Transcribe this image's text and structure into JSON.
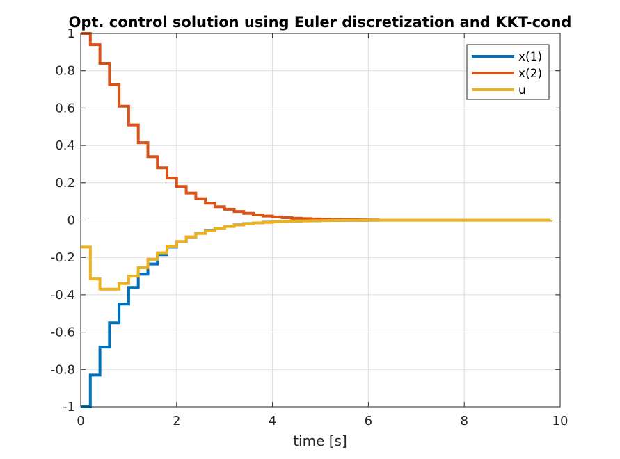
{
  "chart_data": {
    "type": "line",
    "step": true,
    "title": "Opt. control solution using Euler discretization and KKT-cond",
    "xlabel": "time [s]",
    "ylabel": "",
    "xlim": [
      0,
      10
    ],
    "ylim": [
      -1,
      1
    ],
    "grid": true,
    "legend_position": "top-right",
    "x_ticks": [
      0,
      2,
      4,
      6,
      8,
      10
    ],
    "y_ticks": [
      -1,
      -0.8,
      -0.6,
      -0.4,
      -0.2,
      0,
      0.2,
      0.4,
      0.6,
      0.8,
      1
    ],
    "x_tick_labels": [
      "0",
      "2",
      "4",
      "6",
      "8",
      "10"
    ],
    "y_tick_labels": [
      "-1",
      "-0.8",
      "-0.6",
      "-0.4",
      "-0.2",
      "0",
      "0.2",
      "0.4",
      "0.6",
      "0.8",
      "1"
    ],
    "x": [
      0,
      0.2,
      0.4,
      0.6,
      0.8,
      1.0,
      1.2,
      1.4,
      1.6,
      1.8,
      2.0,
      2.2,
      2.4,
      2.6,
      2.8,
      3.0,
      3.2,
      3.4,
      3.6,
      3.8,
      4.0,
      4.2,
      4.4,
      4.6,
      4.8,
      5.0,
      5.2,
      5.4,
      5.6,
      5.8,
      6.0
    ],
    "series": [
      {
        "name": "x(1)",
        "color": "#0072BD",
        "x_end": 6.2,
        "values": [
          -1.0,
          -0.83,
          -0.68,
          -0.55,
          -0.45,
          -0.36,
          -0.29,
          -0.235,
          -0.185,
          -0.145,
          -0.115,
          -0.09,
          -0.07,
          -0.055,
          -0.043,
          -0.033,
          -0.025,
          -0.019,
          -0.015,
          -0.011,
          -0.008,
          -0.006,
          -0.0045,
          -0.0034,
          -0.0025,
          -0.0019,
          -0.0014,
          -0.001,
          -0.0008,
          -0.0006,
          -0.0004
        ]
      },
      {
        "name": "x(2)",
        "color": "#D95319",
        "x_end": 6.2,
        "values": [
          1.0,
          0.94,
          0.84,
          0.725,
          0.61,
          0.51,
          0.415,
          0.34,
          0.28,
          0.225,
          0.18,
          0.145,
          0.115,
          0.09,
          0.072,
          0.058,
          0.046,
          0.036,
          0.028,
          0.022,
          0.017,
          0.013,
          0.01,
          0.008,
          0.006,
          0.0046,
          0.0035,
          0.0027,
          0.002,
          0.0016,
          0.0012
        ]
      },
      {
        "name": "u",
        "color": "#EDB120",
        "x_end": 9.8,
        "values": [
          -0.145,
          -0.315,
          -0.37,
          -0.37,
          -0.34,
          -0.3,
          -0.255,
          -0.21,
          -0.175,
          -0.14,
          -0.115,
          -0.09,
          -0.072,
          -0.057,
          -0.044,
          -0.034,
          -0.026,
          -0.02,
          -0.015,
          -0.012,
          -0.009,
          -0.007,
          -0.005,
          -0.004,
          -0.003,
          -0.0022,
          -0.0016,
          -0.0012,
          -0.0009,
          -0.0007,
          -0.0005
        ]
      }
    ]
  }
}
